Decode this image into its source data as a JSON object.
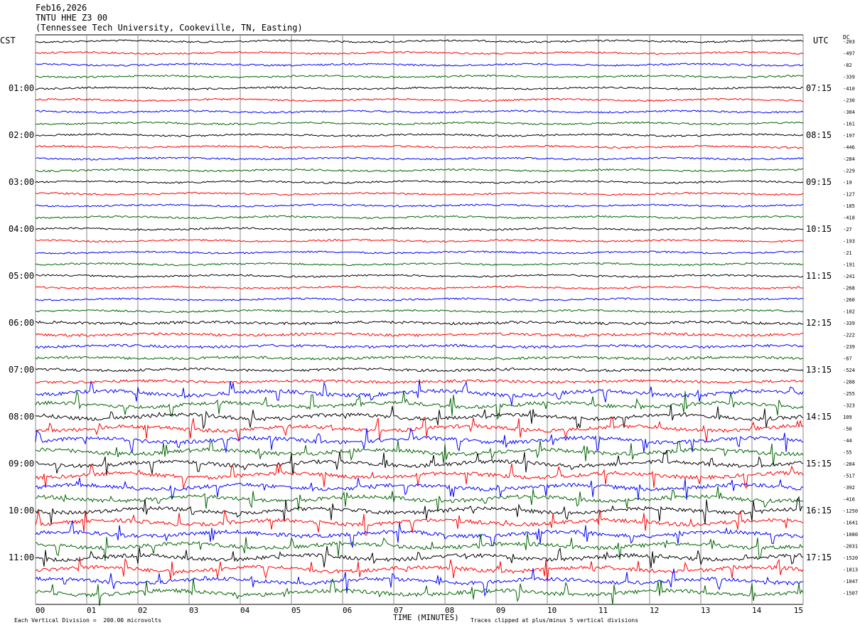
{
  "header": {
    "date": "Feb16,2026",
    "station": "TNTU HHE Z3 00",
    "location": "(Tennessee Tech University, Cookeville, TN, Easting)"
  },
  "left_label": "CST",
  "right_label": "UTC",
  "dc_label": "DC",
  "xlabel": "TIME (MINUTES)",
  "footer_left": "Each Vertical Division =  200.00 microvolts",
  "footer_right": "Traces clipped at plus/minus 5 vertical divisions",
  "chart_data": {
    "type": "line",
    "x_ticks": [
      "00",
      "01",
      "02",
      "03",
      "04",
      "05",
      "06",
      "07",
      "08",
      "09",
      "10",
      "11",
      "12",
      "13",
      "14",
      "15"
    ],
    "xlim": [
      0,
      15
    ],
    "trace_colors": [
      "#000000",
      "#ff0000",
      "#0000ff",
      "#006400"
    ],
    "left_hour_labels": [
      "01:00",
      "02:00",
      "03:00",
      "04:00",
      "05:00",
      "06:00",
      "07:00",
      "08:00",
      "09:00",
      "10:00",
      "11:00"
    ],
    "right_hour_labels": [
      "07:15",
      "08:15",
      "09:15",
      "10:15",
      "11:15",
      "12:15",
      "13:15",
      "14:15",
      "15:15",
      "16:15",
      "17:15"
    ],
    "dc_offsets": [
      "-203",
      "-497",
      "-82",
      "-339",
      "-410",
      "-230",
      "-304",
      "-161",
      "-197",
      "-446",
      "-284",
      "-229",
      "-19",
      "-127",
      "-185",
      "-418",
      "-27",
      "-193",
      "-21",
      "-191",
      "-241",
      "-268",
      "-260",
      "-102",
      "-339",
      "-222",
      "-239",
      "-67",
      "-524",
      "-288",
      "-255",
      "-323",
      "109",
      "-50",
      "-44",
      "-55",
      "-284",
      "-517",
      "-392",
      "-416",
      "-1250",
      "-1641",
      "-1080",
      "-2031",
      "-1520",
      "-1813",
      "-1047",
      "-1507"
    ]
  }
}
